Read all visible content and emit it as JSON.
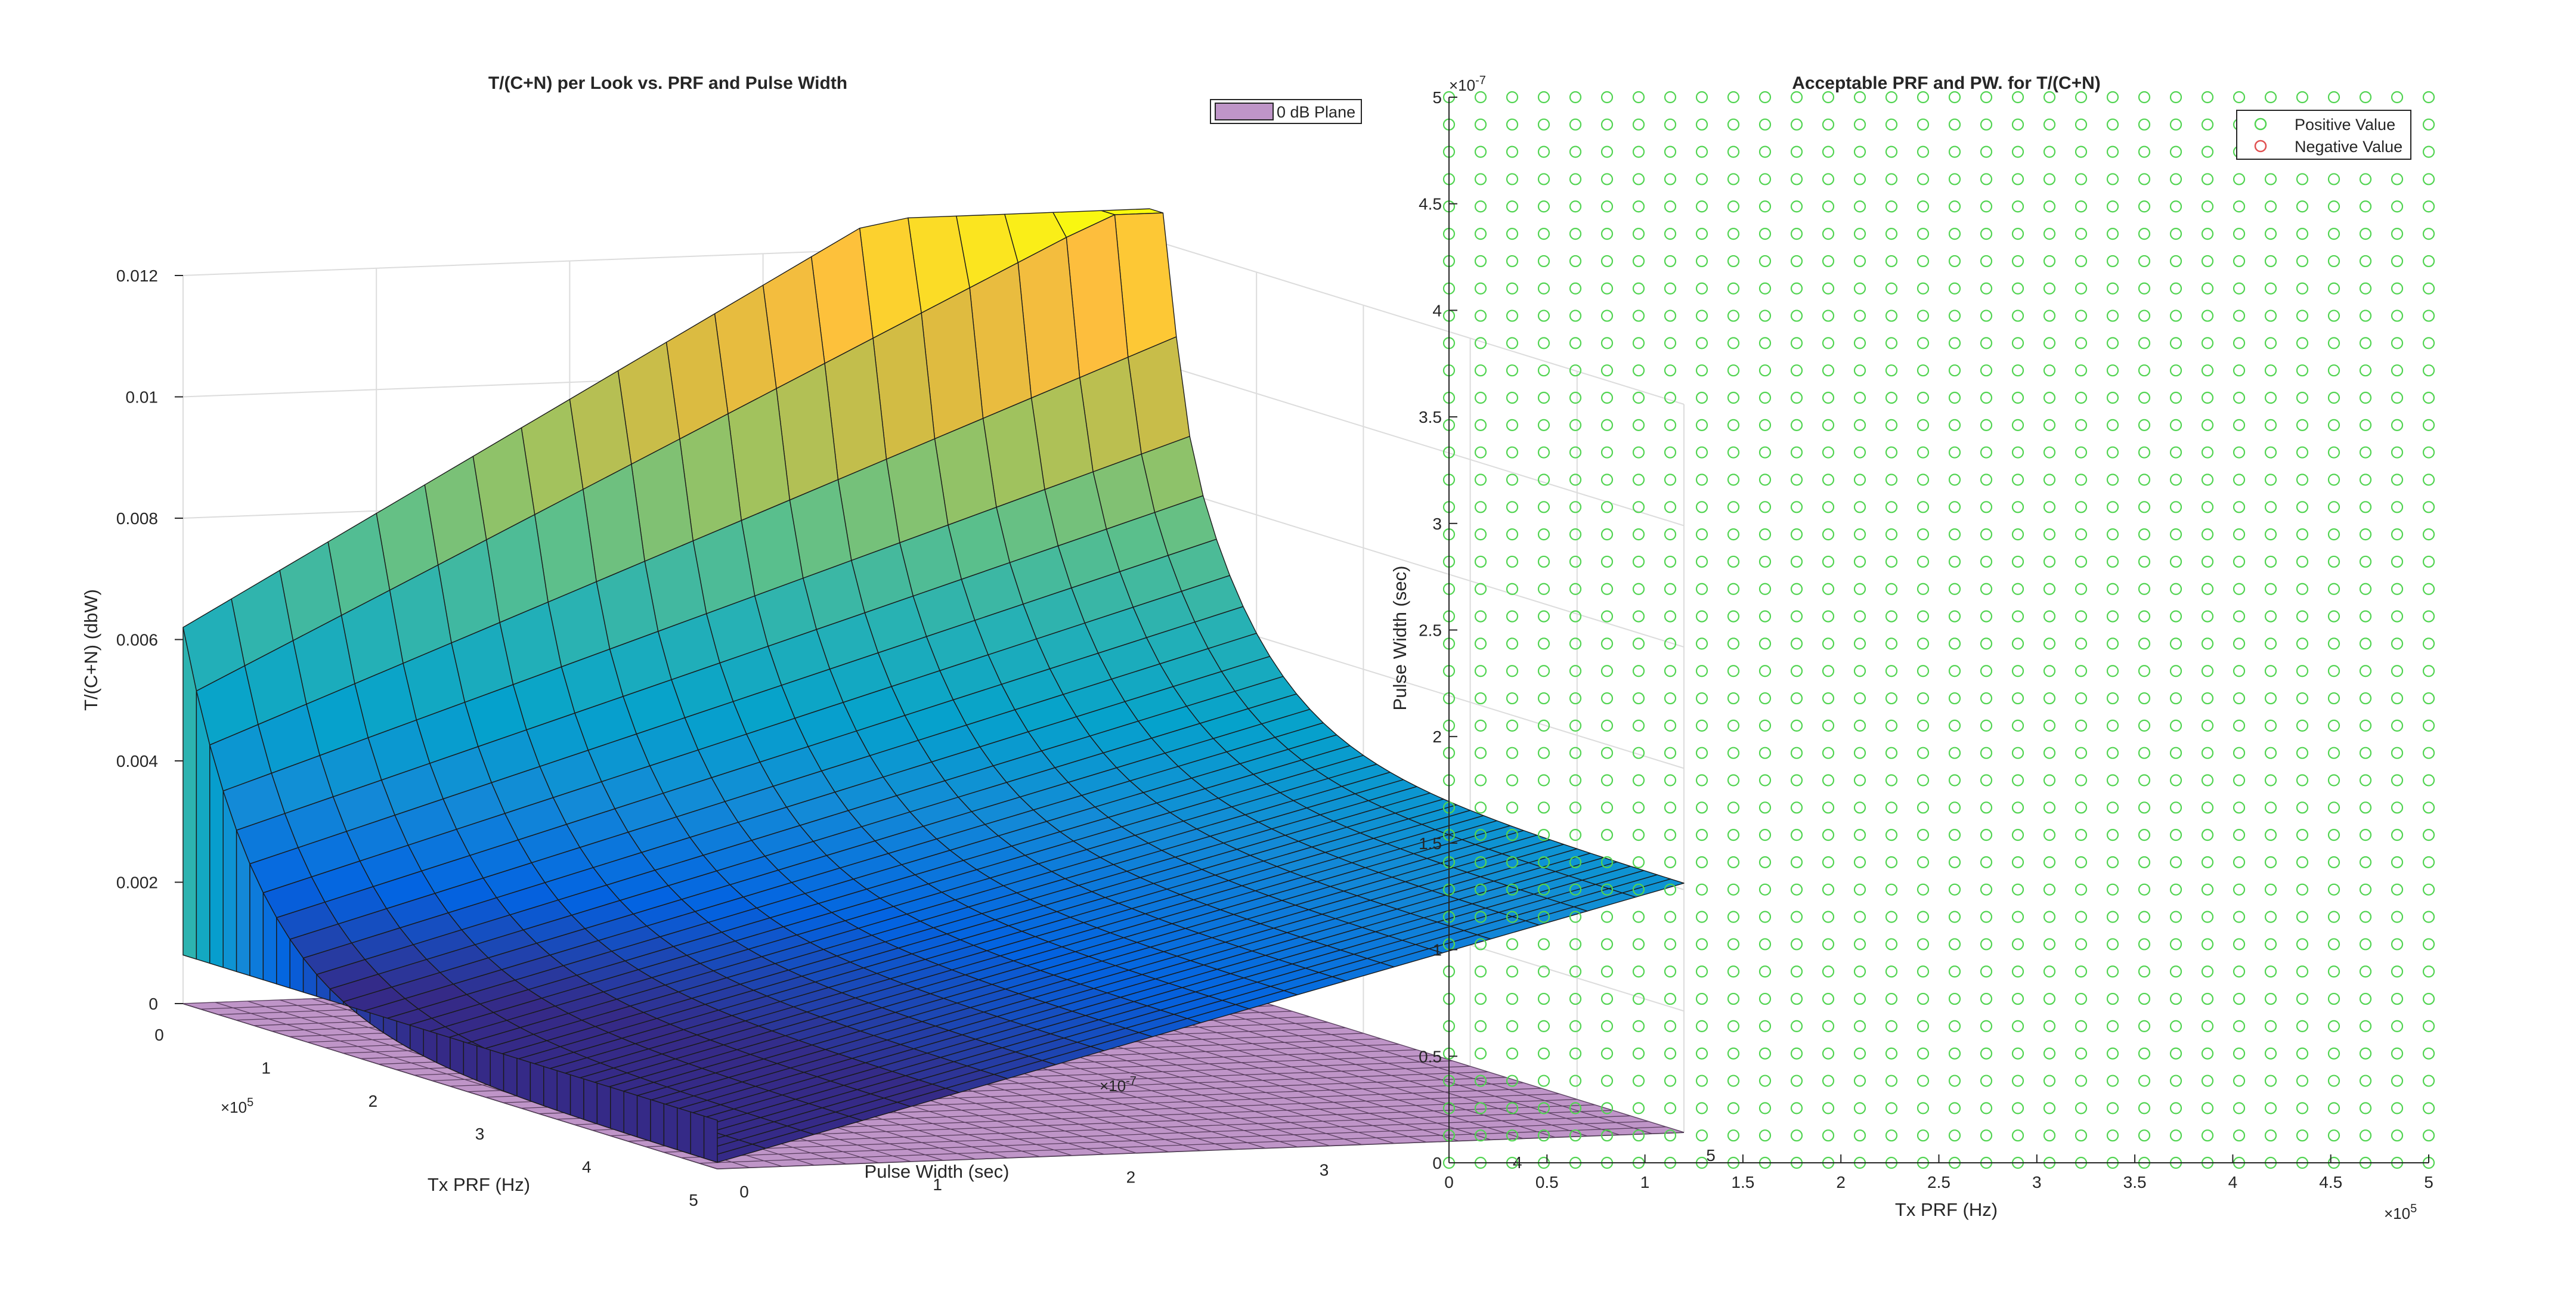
{
  "chart_data": [
    {
      "type": "surface",
      "title": "T/(C+N) per Look vs. PRF and Pulse Width",
      "xlabel": "Tx PRF (Hz)",
      "ylabel": "Pulse Width (sec)",
      "zlabel": "T/(C+N) (dbW)",
      "x_exponent": "×10^5",
      "y_exponent": "×10^-7",
      "x_ticks": [
        "0",
        "1",
        "2",
        "3",
        "4",
        "5"
      ],
      "y_ticks": [
        "0",
        "1",
        "2",
        "3",
        "4",
        "5"
      ],
      "z_ticks": [
        "0",
        "0.002",
        "0.004",
        "0.006",
        "0.008",
        "0.01",
        "0.012"
      ],
      "xlim": [
        0,
        500000
      ],
      "ylim": [
        0,
        5e-07
      ],
      "zlim": [
        0,
        0.012
      ],
      "grid": true,
      "legend": {
        "position": "top-right",
        "entries": [
          {
            "name": "0 dB Plane",
            "color": "#bf95c8"
          }
        ]
      },
      "colormap": "parula",
      "surface_z_samples": {
        "note_axes": "z at (PRF, PW) corners",
        "prf_min_pw_min": 0.0062,
        "prf_min_pw_max": 0.0112,
        "prf_max_pw_min": 0.0001,
        "prf_max_pw_max": 0.0036,
        "max_value": 0.0125
      }
    },
    {
      "type": "scatter",
      "title": "Acceptable PRF and PW. for T/(C+N)",
      "xlabel": "Tx PRF (Hz)",
      "ylabel": "Pulse Width (sec)",
      "x_exponent": "×10^5",
      "y_exponent": "×10^-7",
      "x_ticks": [
        "0",
        "0.5",
        "1",
        "1.5",
        "2",
        "2.5",
        "3",
        "3.5",
        "4",
        "4.5",
        "5"
      ],
      "y_ticks": [
        "0",
        "0.5",
        "1",
        "1.5",
        "2",
        "2.5",
        "3",
        "3.5",
        "4",
        "4.5",
        "5"
      ],
      "xlim": [
        0,
        500000
      ],
      "ylim": [
        0,
        5e-07
      ],
      "grid_points_x": 32,
      "grid_points_y": 40,
      "series": [
        {
          "name": "Positive Value",
          "color": "#52d452",
          "marker": "circle"
        },
        {
          "name": "Negative Value",
          "color": "#e05050",
          "marker": "circle"
        }
      ],
      "legend": {
        "position": "top-right"
      }
    }
  ]
}
